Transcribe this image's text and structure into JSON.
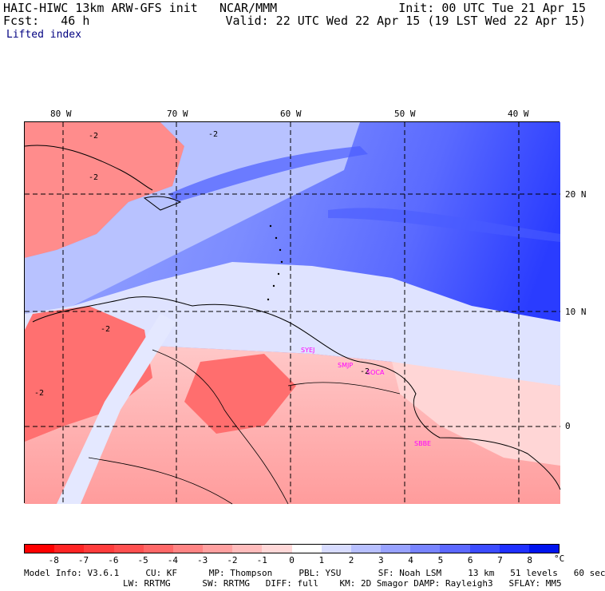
{
  "header": {
    "model_title": "HAIC-HIWC 13km ARW-GFS init",
    "org": "NCAR/MMM",
    "init": "Init: 00 UTC Tue 21 Apr 15",
    "forecast_label": "Fcst:",
    "forecast_hours": "46 h",
    "valid": "Valid: 22 UTC Wed 22 Apr 15 (19 LST Wed 22 Apr 15)",
    "field": "Lifted index"
  },
  "map": {
    "lon_labels": [
      "80 W",
      "70 W",
      "60 W",
      "50 W",
      "40 W"
    ],
    "lat_labels": [
      "20 N",
      "10 N",
      "0"
    ],
    "contour_labels": [
      "-2",
      "-2",
      "-2",
      "-2",
      "-2",
      "-2"
    ],
    "stations": [
      "SYEJ",
      "SMJP",
      "SOCA",
      "SBBE"
    ]
  },
  "colorbar": {
    "tick_labels": [
      "-8",
      "-7",
      "-6",
      "-5",
      "-4",
      "-3",
      "-2",
      "-1",
      "0",
      "1",
      "2",
      "3",
      "4",
      "5",
      "6",
      "7",
      "8"
    ],
    "unit": "°C",
    "colors": [
      "#ff0000",
      "#ff2424",
      "#ff3c3c",
      "#ff5050",
      "#ff6868",
      "#ff8484",
      "#ffa0a0",
      "#ffbcbc",
      "#ffd8d8",
      "#ffffff",
      "#d8dcff",
      "#b8c0ff",
      "#98a2ff",
      "#7884ff",
      "#5c68ff",
      "#3c4cff",
      "#2030ff",
      "#0014ee"
    ]
  },
  "model_info": {
    "line1": "Model Info: V3.6.1     CU: KF      MP: Thompson     PBL: YSU       SF: Noah LSM     13 km   51 levels   60 sec",
    "line2": "LW: RRTMG      SW: RRTMG   DIFF: full    KM: 2D Smagor DAMP: Rayleigh3   SFLAY: MM5"
  }
}
